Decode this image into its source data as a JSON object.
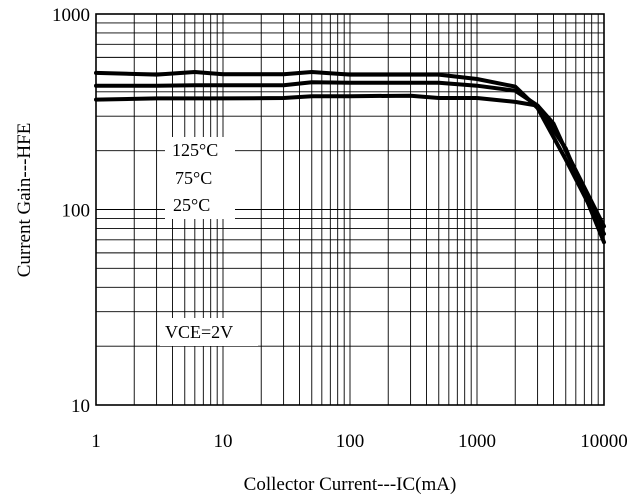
{
  "chart_data": {
    "type": "line",
    "xscale": "log",
    "yscale": "log",
    "xlim": [
      1,
      10000
    ],
    "ylim": [
      10,
      1000
    ],
    "xlabel": "Collector Current---IC(mA)",
    "ylabel": "Current Gain---HFE",
    "grid": true,
    "x_ticks": [
      {
        "value": 1,
        "label": "1"
      },
      {
        "value": 10,
        "label": "10"
      },
      {
        "value": 100,
        "label": "100"
      },
      {
        "value": 1000,
        "label": "1000"
      },
      {
        "value": 10000,
        "label": "10000"
      }
    ],
    "y_ticks": [
      {
        "value": 10,
        "label": "10"
      },
      {
        "value": 100,
        "label": "100"
      },
      {
        "value": 1000,
        "label": "1000"
      }
    ],
    "series": [
      {
        "name": "125°C",
        "x": [
          1,
          3,
          6,
          10,
          30,
          50,
          100,
          500,
          1000,
          2000,
          3000,
          5000,
          10000
        ],
        "y": [
          500,
          490,
          505,
          492,
          492,
          505,
          490,
          490,
          465,
          425,
          330,
          180,
          75
        ]
      },
      {
        "name": "75°C",
        "x": [
          1,
          3,
          6,
          10,
          30,
          50,
          100,
          500,
          1000,
          2000,
          3000,
          5000,
          10000
        ],
        "y": [
          430,
          430,
          432,
          432,
          432,
          448,
          445,
          445,
          430,
          405,
          340,
          205,
          68
        ]
      },
      {
        "name": "25°C",
        "x": [
          1,
          3,
          6,
          10,
          30,
          50,
          100,
          300,
          500,
          1000,
          2000,
          3000,
          4000,
          5000,
          10000
        ],
        "y": [
          365,
          370,
          370,
          370,
          372,
          380,
          380,
          382,
          372,
          372,
          355,
          340,
          275,
          200,
          82
        ]
      }
    ],
    "annotations": [
      "125°C",
      "75°C",
      "25°C",
      "VCE=2V"
    ]
  }
}
